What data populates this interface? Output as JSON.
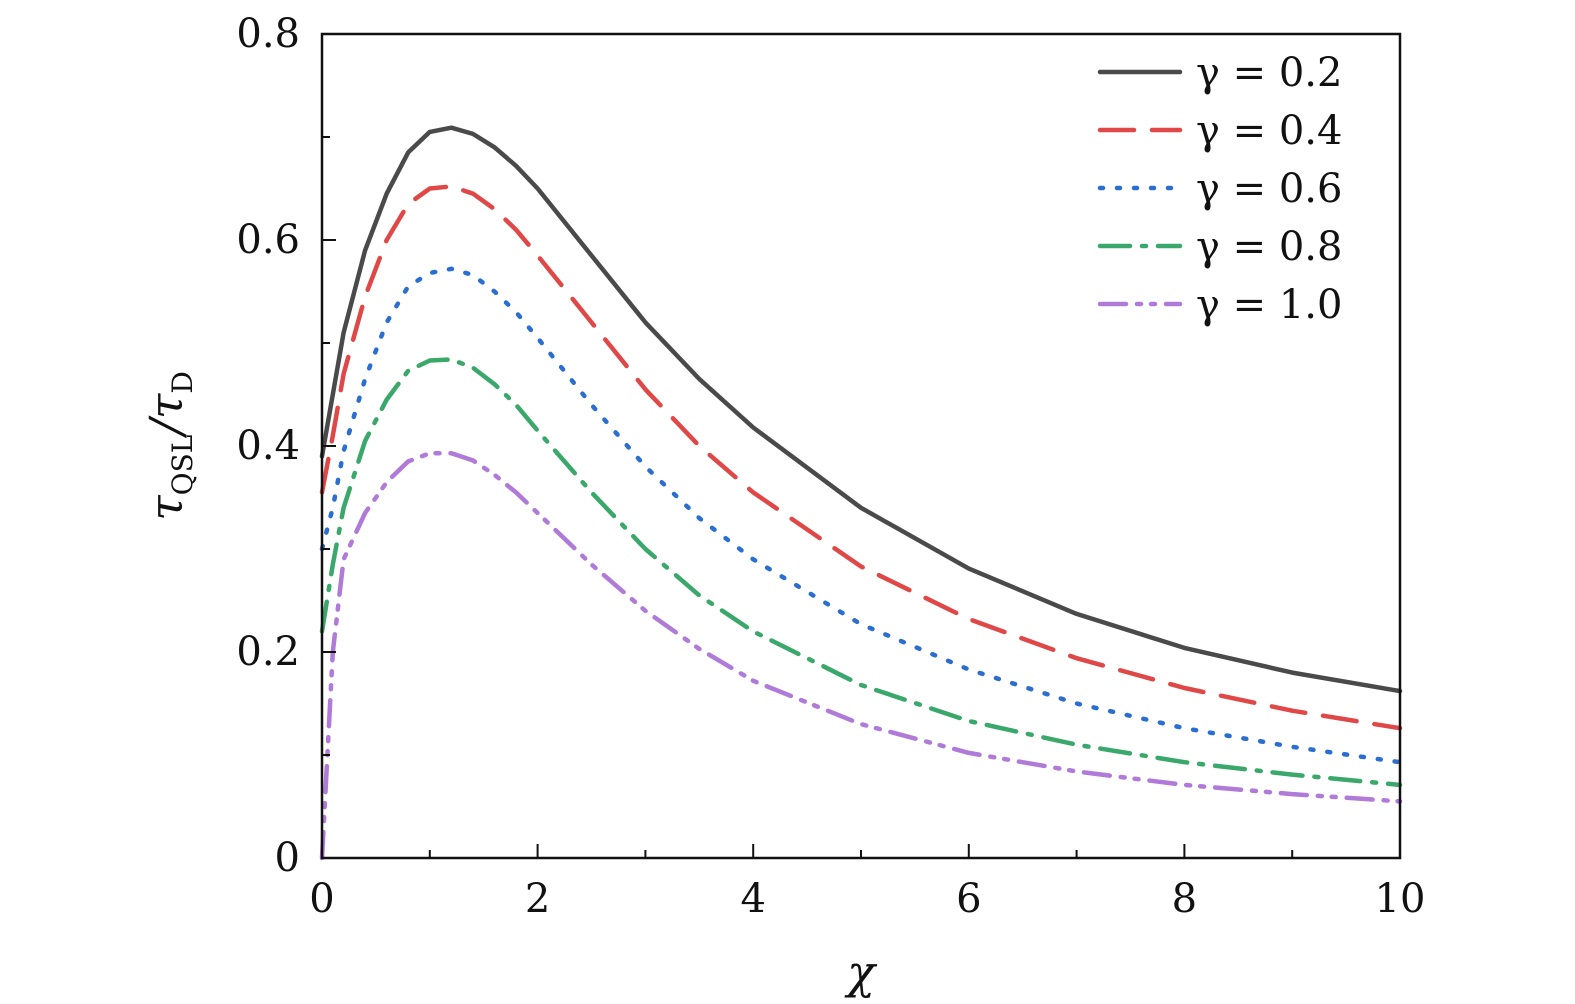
{
  "chart_data": {
    "type": "line",
    "xlabel": "χ",
    "ylabel": "τQSL/τD",
    "ylabel_parts": {
      "main": "τ",
      "sub1": "QSL",
      "mid": "/τ",
      "sub2": "D"
    },
    "xlim": [
      0,
      10
    ],
    "ylim": [
      0,
      0.8
    ],
    "xticks": [
      0,
      2,
      4,
      6,
      8,
      10
    ],
    "xtick_labels": [
      "0",
      "2",
      "4",
      "6",
      "8",
      "10"
    ],
    "yticks": [
      0,
      0.2,
      0.4,
      0.6,
      0.8
    ],
    "ytick_labels": [
      "0",
      "0.2",
      "0.4",
      "0.6",
      "0.8"
    ],
    "grid": false,
    "legend_position": "top-right",
    "x": [
      0,
      0.1,
      0.2,
      0.4,
      0.6,
      0.8,
      1.0,
      1.2,
      1.4,
      1.6,
      1.8,
      2.0,
      2.5,
      3.0,
      3.5,
      4.0,
      5.0,
      6.0,
      7.0,
      8.0,
      9.0,
      10.0
    ],
    "series": [
      {
        "name": "γ = 0.2",
        "color": "#4a4a4a",
        "dash": "solid",
        "values": [
          0.39,
          0.45,
          0.51,
          0.59,
          0.645,
          0.685,
          0.705,
          0.709,
          0.703,
          0.69,
          0.672,
          0.65,
          0.585,
          0.52,
          0.465,
          0.418,
          0.34,
          0.281,
          0.237,
          0.204,
          0.18,
          0.162
        ]
      },
      {
        "name": "γ = 0.4",
        "color": "#e04848",
        "dash": "dashed",
        "values": [
          0.355,
          0.41,
          0.47,
          0.545,
          0.6,
          0.635,
          0.65,
          0.652,
          0.645,
          0.63,
          0.61,
          0.585,
          0.52,
          0.455,
          0.4,
          0.355,
          0.283,
          0.232,
          0.194,
          0.165,
          0.143,
          0.126
        ]
      },
      {
        "name": "γ = 0.6",
        "color": "#2a6ed0",
        "dash": "dotted",
        "values": [
          0.3,
          0.34,
          0.395,
          0.465,
          0.52,
          0.555,
          0.568,
          0.572,
          0.566,
          0.55,
          0.53,
          0.505,
          0.44,
          0.38,
          0.33,
          0.29,
          0.227,
          0.183,
          0.15,
          0.126,
          0.108,
          0.093
        ]
      },
      {
        "name": "γ = 0.8",
        "color": "#3aa86a",
        "dash": "dashdot",
        "values": [
          0.22,
          0.285,
          0.34,
          0.405,
          0.445,
          0.473,
          0.483,
          0.484,
          0.476,
          0.46,
          0.44,
          0.415,
          0.355,
          0.3,
          0.255,
          0.22,
          0.168,
          0.133,
          0.11,
          0.093,
          0.081,
          0.071
        ]
      },
      {
        "name": "γ = 1.0",
        "color": "#b07ad8",
        "dash": "dashdotdot",
        "values": [
          0.0,
          0.2,
          0.29,
          0.335,
          0.365,
          0.385,
          0.393,
          0.393,
          0.386,
          0.372,
          0.355,
          0.335,
          0.285,
          0.24,
          0.203,
          0.172,
          0.13,
          0.102,
          0.084,
          0.071,
          0.062,
          0.055
        ]
      }
    ]
  }
}
